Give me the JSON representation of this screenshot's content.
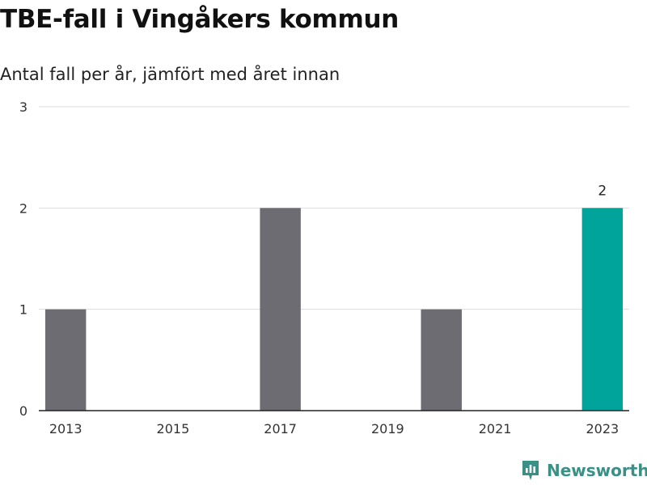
{
  "title": "TBE-fall i Vingåkers kommun",
  "subtitle": "Antal fall per år, jämfört med året innan",
  "brand": {
    "name": "Newsworthy",
    "icon": "bar-chart-pin-icon",
    "color": "#3a8f86"
  },
  "colors": {
    "bar": "#6d6c73",
    "highlight": "#00a49a",
    "grid": "#dddddd",
    "axis": "#222222"
  },
  "chart_data": {
    "type": "bar",
    "title": "TBE-fall i Vingåkers kommun",
    "subtitle": "Antal fall per år, jämfört med året innan",
    "categories": [
      "2013",
      "2014",
      "2015",
      "2016",
      "2017",
      "2018",
      "2019",
      "2020",
      "2021",
      "2022",
      "2023"
    ],
    "values": [
      1,
      0,
      0,
      0,
      2,
      0,
      0,
      1,
      0,
      0,
      2
    ],
    "highlight_index": 10,
    "x_tick_labels": [
      "2013",
      "2015",
      "2017",
      "2019",
      "2021",
      "2023"
    ],
    "y_ticks": [
      0,
      1,
      2,
      3
    ],
    "ylim": [
      0,
      3
    ],
    "data_labels": [
      {
        "index": 10,
        "text": "2"
      }
    ],
    "grid": true,
    "legend": "none"
  }
}
